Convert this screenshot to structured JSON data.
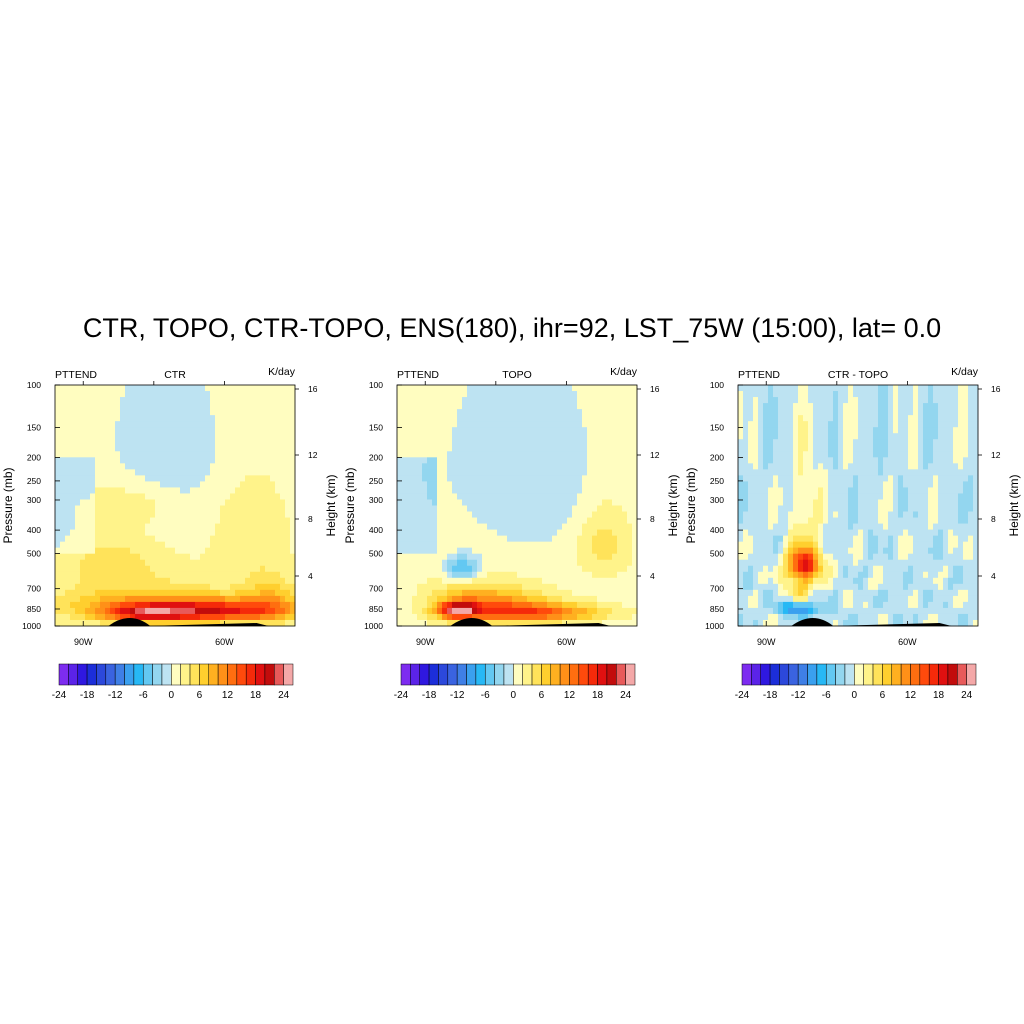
{
  "title": "CTR, TOPO, CTR-TOPO, ENS(180), ihr=92, LST_75W (15:00), lat=  0.0",
  "chart_data": [
    {
      "type": "heatmap",
      "left_label": "PTTEND",
      "center_label": "CTR",
      "right_label": "K/day",
      "ylabel": "Pressure (mb)",
      "y2label": "Height (km)",
      "pressure_ticks": [
        "100",
        "150",
        "200",
        "250",
        "300",
        "400",
        "500",
        "700",
        "850",
        "1000"
      ],
      "height_ticks": [
        "4",
        "8",
        "12",
        "16"
      ],
      "x_ticks": [
        "90W",
        "60W"
      ],
      "colorbar_ticks": [
        "-24",
        "-18",
        "-12",
        "-6",
        "0",
        "6",
        "12",
        "18",
        "24"
      ],
      "blobs": [
        {
          "lon": -83,
          "p": 560,
          "value": 4,
          "sx": 10,
          "sy": 150
        },
        {
          "lon": -78,
          "p": 310,
          "value": 3,
          "sx": 9,
          "sy": 50
        },
        {
          "lon": -55,
          "p": 420,
          "value": 3,
          "sx": 6,
          "sy": 150
        },
        {
          "lon": -72,
          "p": 830,
          "value": 9,
          "sx": 16,
          "sy": 90
        },
        {
          "lon": -62,
          "p": 870,
          "value": 12,
          "sx": 12,
          "sy": 60
        },
        {
          "lon": -77,
          "p": 890,
          "value": 10,
          "sx": 6,
          "sy": 50
        },
        {
          "lon": -50,
          "p": 760,
          "value": 5,
          "sx": 4,
          "sy": 120
        }
      ]
    },
    {
      "type": "heatmap",
      "left_label": "PTTEND",
      "center_label": "TOPO",
      "right_label": "K/day",
      "ylabel": "Pressure (mb)",
      "y2label": "Height (km)",
      "pressure_ticks": [
        "100",
        "150",
        "200",
        "250",
        "300",
        "400",
        "500",
        "700",
        "850",
        "1000"
      ],
      "height_ticks": [
        "4",
        "8",
        "12",
        "16"
      ],
      "x_ticks": [
        "90W",
        "60W"
      ],
      "colorbar_ticks": [
        "-24",
        "-18",
        "-12",
        "-6",
        "0",
        "6",
        "12",
        "18",
        "24"
      ],
      "blobs": [
        {
          "lon": -82,
          "p": 580,
          "value": -9,
          "sx": 3,
          "sy": 60
        },
        {
          "lon": -83,
          "p": 860,
          "value": 18,
          "sx": 3,
          "sy": 45
        },
        {
          "lon": -75,
          "p": 820,
          "value": 9,
          "sx": 8,
          "sy": 100
        },
        {
          "lon": -65,
          "p": 880,
          "value": 11,
          "sx": 9,
          "sy": 55
        },
        {
          "lon": -52,
          "p": 450,
          "value": 4,
          "sx": 4,
          "sy": 110
        },
        {
          "lon": -82,
          "p": 700,
          "value": 3,
          "sx": 5,
          "sy": 200
        }
      ]
    },
    {
      "type": "heatmap",
      "left_label": "PTTEND",
      "center_label": "CTR - TOPO",
      "right_label": "K/day",
      "ylabel": "Pressure (mb)",
      "y2label": "Height (km)",
      "pressure_ticks": [
        "100",
        "150",
        "200",
        "250",
        "300",
        "400",
        "500",
        "700",
        "850",
        "1000"
      ],
      "height_ticks": [
        "4",
        "8",
        "12",
        "16"
      ],
      "x_ticks": [
        "90W",
        "60W"
      ],
      "colorbar_ticks": [
        "-24",
        "-18",
        "-12",
        "-6",
        "0",
        "6",
        "12",
        "18",
        "24"
      ],
      "blobs": [
        {
          "lon": -82,
          "p": 560,
          "value": 18,
          "sx": 2.5,
          "sy": 60
        },
        {
          "lon": -81.5,
          "p": 400,
          "value": 4,
          "sx": 2.5,
          "sy": 160
        },
        {
          "lon": -83,
          "p": 700,
          "value": 6,
          "sx": 2,
          "sy": 50
        },
        {
          "lon": -84,
          "p": 845,
          "value": -9,
          "sx": 2.5,
          "sy": 30
        },
        {
          "lon": -80,
          "p": 880,
          "value": -3,
          "sx": 3,
          "sy": 40
        }
      ]
    }
  ]
}
